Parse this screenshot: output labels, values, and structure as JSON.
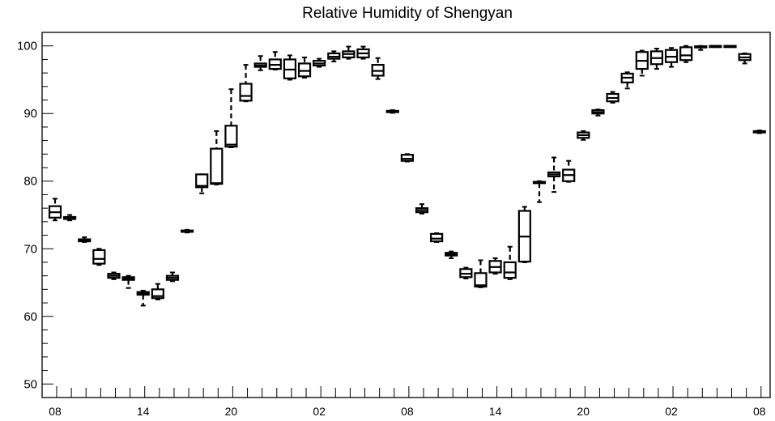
{
  "chart_data": {
    "type": "boxplot",
    "title": "Relative Humidity of Shengyan",
    "xlabel": "",
    "ylabel": "",
    "ylim": [
      48,
      102
    ],
    "y_ticks": [
      50,
      60,
      70,
      80,
      90,
      100
    ],
    "x_tick_labels": [
      "08",
      "14",
      "20",
      "02",
      "08",
      "14",
      "20",
      "02",
      "08"
    ],
    "x_tick_label_slots": [
      0,
      6,
      12,
      18,
      24,
      30,
      36,
      42,
      48
    ],
    "grid": false,
    "series": [
      {
        "boxes": [
          {
            "slot": 0,
            "min": 74.2,
            "q1": 74.6,
            "median": 75.4,
            "q3": 76.3,
            "max": 77.4
          },
          {
            "slot": 1,
            "min": 74.2,
            "q1": 74.4,
            "median": 74.6,
            "q3": 74.7,
            "max": 75.0
          },
          {
            "slot": 2,
            "min": 71.0,
            "q1": 71.1,
            "median": 71.3,
            "q3": 71.4,
            "max": 71.7
          },
          {
            "slot": 3,
            "min": 67.6,
            "q1": 67.8,
            "median": 68.5,
            "q3": 69.8,
            "max": 70.0
          },
          {
            "slot": 4,
            "min": 65.5,
            "q1": 65.7,
            "median": 66.0,
            "q3": 66.3,
            "max": 66.5
          },
          {
            "slot": 5,
            "min": 64.2,
            "q1": 65.4,
            "median": 65.6,
            "q3": 65.8,
            "max": 66.0
          },
          {
            "slot": 6,
            "min": 61.6,
            "q1": 63.2,
            "median": 63.4,
            "q3": 63.6,
            "max": 63.8
          },
          {
            "slot": 7,
            "min": 62.5,
            "q1": 62.7,
            "median": 63.0,
            "q3": 64.0,
            "max": 64.8
          },
          {
            "slot": 8,
            "min": 65.2,
            "q1": 65.4,
            "median": 65.7,
            "q3": 66.0,
            "max": 66.5
          },
          {
            "slot": 9,
            "min": 72.4,
            "q1": 72.5,
            "median": 72.6,
            "q3": 72.7,
            "max": 72.8
          },
          {
            "slot": 10,
            "min": 78.2,
            "q1": 79.1,
            "median": 79.3,
            "q3": 81.0,
            "max": 81.0
          },
          {
            "slot": 11,
            "min": 79.5,
            "q1": 79.6,
            "median": 79.7,
            "q3": 84.8,
            "max": 87.4
          },
          {
            "slot": 12,
            "min": 85.0,
            "q1": 85.1,
            "median": 85.4,
            "q3": 88.2,
            "max": 93.6
          },
          {
            "slot": 13,
            "min": 91.8,
            "q1": 91.9,
            "median": 92.6,
            "q3": 94.4,
            "max": 97.2
          },
          {
            "slot": 14,
            "min": 96.4,
            "q1": 96.9,
            "median": 97.1,
            "q3": 97.4,
            "max": 98.5
          },
          {
            "slot": 15,
            "min": 96.5,
            "q1": 96.6,
            "median": 97.2,
            "q3": 98.0,
            "max": 99.1
          },
          {
            "slot": 16,
            "min": 95.0,
            "q1": 95.2,
            "median": 96.5,
            "q3": 98.0,
            "max": 98.6
          },
          {
            "slot": 17,
            "min": 95.3,
            "q1": 95.5,
            "median": 96.3,
            "q3": 97.4,
            "max": 98.3
          },
          {
            "slot": 18,
            "min": 96.9,
            "q1": 97.1,
            "median": 97.4,
            "q3": 97.8,
            "max": 98.1
          },
          {
            "slot": 19,
            "min": 97.7,
            "q1": 98.1,
            "median": 98.4,
            "q3": 98.9,
            "max": 99.2
          },
          {
            "slot": 20,
            "min": 98.1,
            "q1": 98.3,
            "median": 98.8,
            "q3": 99.2,
            "max": 99.9
          },
          {
            "slot": 21,
            "min": 98.1,
            "q1": 98.3,
            "median": 98.9,
            "q3": 99.5,
            "max": 99.9
          },
          {
            "slot": 22,
            "min": 95.1,
            "q1": 95.6,
            "median": 96.3,
            "q3": 97.2,
            "max": 98.2
          },
          {
            "slot": 23,
            "min": 90.1,
            "q1": 90.2,
            "median": 90.3,
            "q3": 90.4,
            "max": 90.5
          },
          {
            "slot": 24,
            "min": 82.9,
            "q1": 83.0,
            "median": 83.3,
            "q3": 83.9,
            "max": 84.0
          },
          {
            "slot": 25,
            "min": 75.2,
            "q1": 75.4,
            "median": 75.7,
            "q3": 76.0,
            "max": 76.6
          },
          {
            "slot": 26,
            "min": 71.0,
            "q1": 71.1,
            "median": 71.5,
            "q3": 72.2,
            "max": 72.3
          },
          {
            "slot": 27,
            "min": 68.6,
            "q1": 69.0,
            "median": 69.2,
            "q3": 69.4,
            "max": 69.6
          },
          {
            "slot": 28,
            "min": 65.6,
            "q1": 65.8,
            "median": 66.3,
            "q3": 67.0,
            "max": 67.2
          },
          {
            "slot": 29,
            "min": 64.3,
            "q1": 64.4,
            "median": 64.6,
            "q3": 66.4,
            "max": 68.3
          },
          {
            "slot": 30,
            "min": 66.3,
            "q1": 66.5,
            "median": 67.3,
            "q3": 68.2,
            "max": 68.6
          },
          {
            "slot": 31,
            "min": 65.5,
            "q1": 65.7,
            "median": 66.5,
            "q3": 68.0,
            "max": 70.3
          },
          {
            "slot": 32,
            "min": 68.0,
            "q1": 68.1,
            "median": 71.8,
            "q3": 75.6,
            "max": 76.2
          },
          {
            "slot": 33,
            "min": 76.9,
            "q1": 79.7,
            "median": 79.8,
            "q3": 79.9,
            "max": 80.0
          },
          {
            "slot": 34,
            "min": 78.4,
            "q1": 80.7,
            "median": 81.0,
            "q3": 81.3,
            "max": 83.5
          },
          {
            "slot": 35,
            "min": 79.9,
            "q1": 80.0,
            "median": 80.9,
            "q3": 81.7,
            "max": 83.0
          },
          {
            "slot": 36,
            "min": 86.1,
            "q1": 86.4,
            "median": 86.8,
            "q3": 87.2,
            "max": 87.4
          },
          {
            "slot": 37,
            "min": 89.7,
            "q1": 90.0,
            "median": 90.2,
            "q3": 90.5,
            "max": 90.6
          },
          {
            "slot": 38,
            "min": 91.6,
            "q1": 91.8,
            "median": 92.3,
            "q3": 92.9,
            "max": 93.2
          },
          {
            "slot": 39,
            "min": 93.7,
            "q1": 94.6,
            "median": 95.3,
            "q3": 95.9,
            "max": 96.1
          },
          {
            "slot": 40,
            "min": 95.6,
            "q1": 96.6,
            "median": 97.8,
            "q3": 99.1,
            "max": 99.3
          },
          {
            "slot": 41,
            "min": 96.6,
            "q1": 97.3,
            "median": 98.2,
            "q3": 99.2,
            "max": 99.6
          },
          {
            "slot": 42,
            "min": 96.9,
            "q1": 97.6,
            "median": 98.4,
            "q3": 99.4,
            "max": 99.7
          },
          {
            "slot": 43,
            "min": 97.6,
            "q1": 97.9,
            "median": 98.6,
            "q3": 99.8,
            "max": 100.0
          },
          {
            "slot": 44,
            "min": 99.4,
            "q1": 99.8,
            "median": 99.9,
            "q3": 99.95,
            "max": 100.0
          },
          {
            "slot": 45,
            "min": 99.9,
            "q1": 99.95,
            "median": 100.0,
            "q3": 100.0,
            "max": 100.0
          },
          {
            "slot": 46,
            "min": 99.9,
            "q1": 99.95,
            "median": 100.0,
            "q3": 100.0,
            "max": 100.0
          },
          {
            "slot": 47,
            "min": 97.4,
            "q1": 97.9,
            "median": 98.3,
            "q3": 98.8,
            "max": 98.9
          },
          {
            "slot": 48,
            "min": 87.1,
            "q1": 87.2,
            "median": 87.3,
            "q3": 87.4,
            "max": 87.5
          }
        ]
      }
    ]
  }
}
